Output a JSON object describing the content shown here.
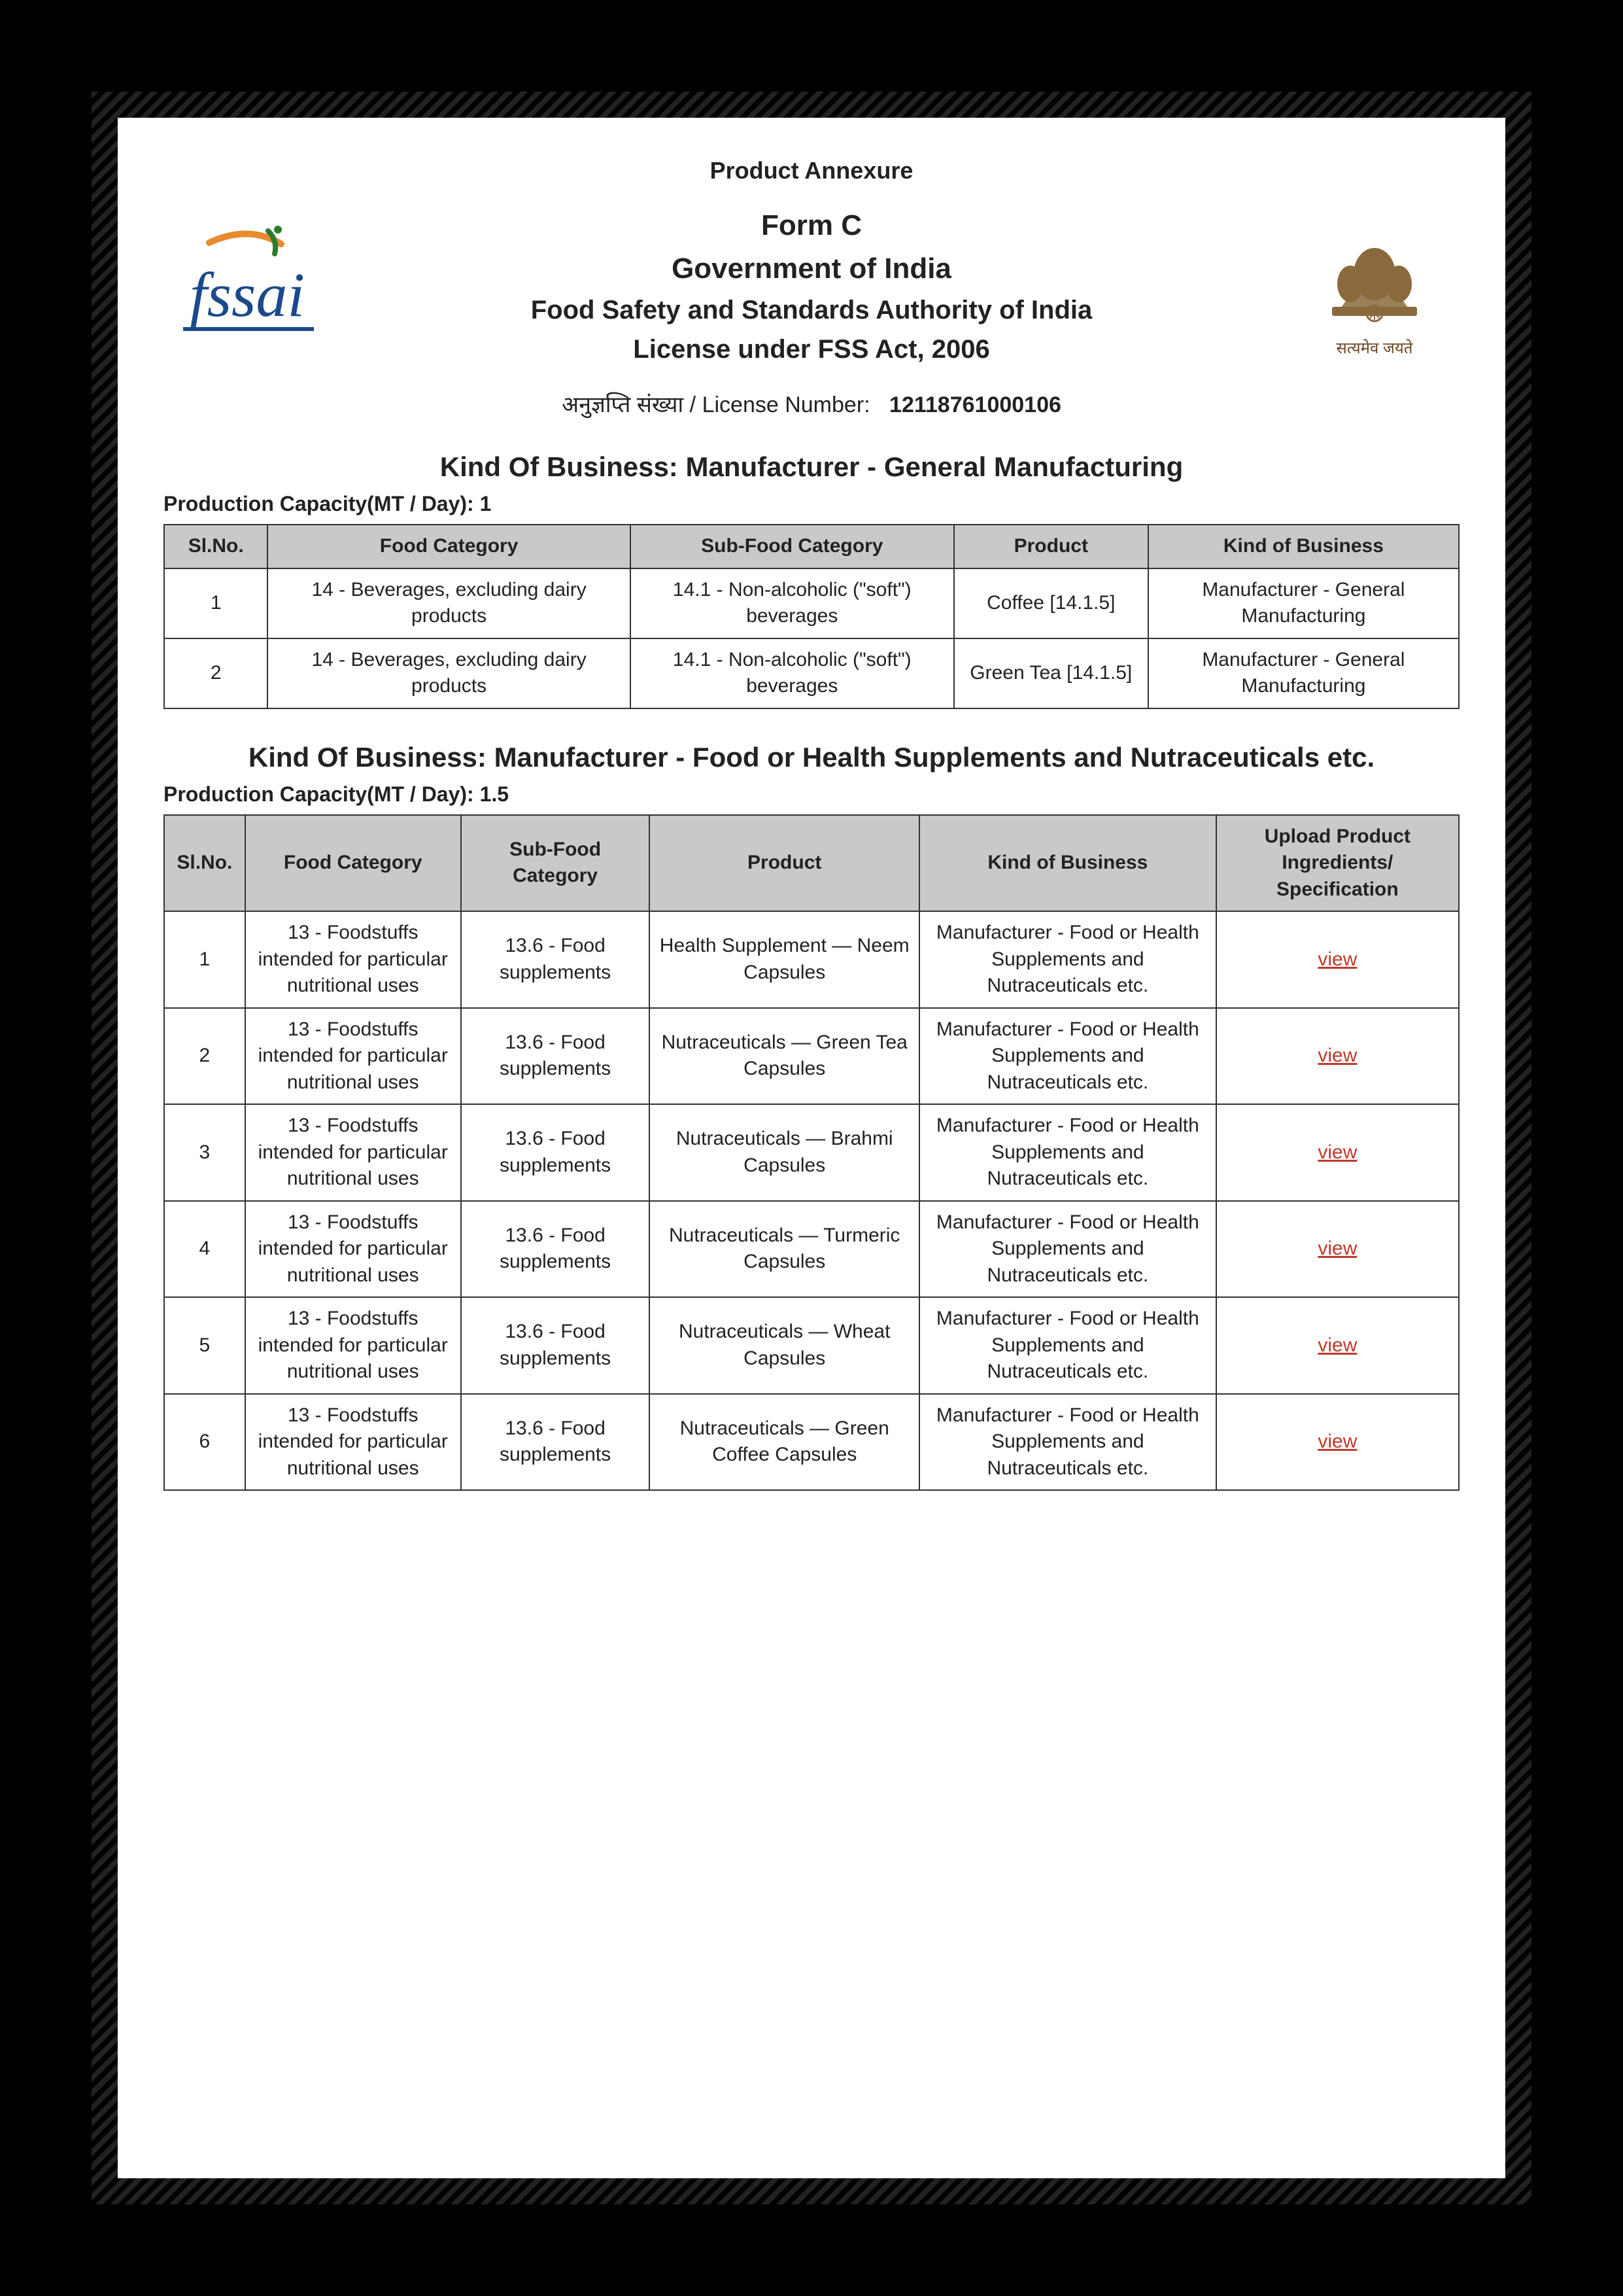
{
  "annexure_title": "Product Annexure",
  "header": {
    "form": "Form C",
    "gov": "Government of India",
    "authority": "Food Safety and Standards Authority of India",
    "license_act": "License under FSS Act, 2006",
    "emblem_caption": "सत्यमेव जयते"
  },
  "license": {
    "label": "अनुज्ञप्ति संख्या / License Number:",
    "number": "12118761000106"
  },
  "section1": {
    "kob": "Kind Of Business:  Manufacturer -  General Manufacturing",
    "capacity": "Production Capacity(MT / Day): 1",
    "columns": [
      "Sl.No.",
      "Food Category",
      "Sub-Food Category",
      "Product",
      "Kind of Business"
    ],
    "rows": [
      {
        "sl": "1",
        "cat": "14 - Beverages, excluding dairy products",
        "sub": "14.1 - Non-alcoholic (\"soft\") beverages",
        "prod": "Coffee [14.1.5]",
        "kob": "Manufacturer - General Manufacturing"
      },
      {
        "sl": "2",
        "cat": "14 - Beverages, excluding dairy products",
        "sub": "14.1 - Non-alcoholic (\"soft\") beverages",
        "prod": "Green Tea [14.1.5]",
        "kob": "Manufacturer - General Manufacturing"
      }
    ]
  },
  "section2": {
    "kob": "Kind Of Business:  Manufacturer - Food or Health Supplements and Nutraceuticals etc.",
    "capacity": "Production Capacity(MT / Day): 1.5",
    "columns": [
      "Sl.No.",
      "Food Category",
      "Sub-Food Category",
      "Product",
      "Kind of Business",
      "Upload Product Ingredients/ Specification"
    ],
    "view_label": "view",
    "rows": [
      {
        "sl": "1",
        "cat": "13 - Foodstuffs intended for particular nutritional uses",
        "sub": "13.6 - Food supplements",
        "prod": "Health Supplement — Neem Capsules",
        "kob": "Manufacturer - Food or Health Supplements and Nutraceuticals etc."
      },
      {
        "sl": "2",
        "cat": "13 - Foodstuffs intended for particular nutritional uses",
        "sub": "13.6 - Food supplements",
        "prod": "Nutraceuticals — Green Tea Capsules",
        "kob": "Manufacturer - Food or Health Supplements and Nutraceuticals etc."
      },
      {
        "sl": "3",
        "cat": "13 - Foodstuffs intended for particular nutritional uses",
        "sub": "13.6 - Food supplements",
        "prod": "Nutraceuticals — Brahmi Capsules",
        "kob": "Manufacturer - Food or Health Supplements and Nutraceuticals etc."
      },
      {
        "sl": "4",
        "cat": "13 - Foodstuffs intended for particular nutritional uses",
        "sub": "13.6 - Food supplements",
        "prod": "Nutraceuticals — Turmeric Capsules",
        "kob": "Manufacturer - Food or Health Supplements and Nutraceuticals etc."
      },
      {
        "sl": "5",
        "cat": "13 - Foodstuffs intended for particular nutritional uses",
        "sub": "13.6 - Food supplements",
        "prod": "Nutraceuticals — Wheat Capsules",
        "kob": "Manufacturer - Food or Health Supplements and Nutraceuticals etc."
      },
      {
        "sl": "6",
        "cat": "13 - Foodstuffs intended for particular nutritional uses",
        "sub": "13.6 - Food supplements",
        "prod": "Nutraceuticals — Green Coffee Capsules",
        "kob": "Manufacturer - Food or Health Supplements and Nutraceuticals etc."
      }
    ]
  },
  "colors": {
    "fssai_orange": "#e88b2e",
    "fssai_green": "#2f7a2f",
    "fssai_blue": "#1b4a8b",
    "emblem": "#8a6a3d",
    "link": "#c0392b",
    "header_bg": "#c9c9c9",
    "border": "#333333"
  }
}
